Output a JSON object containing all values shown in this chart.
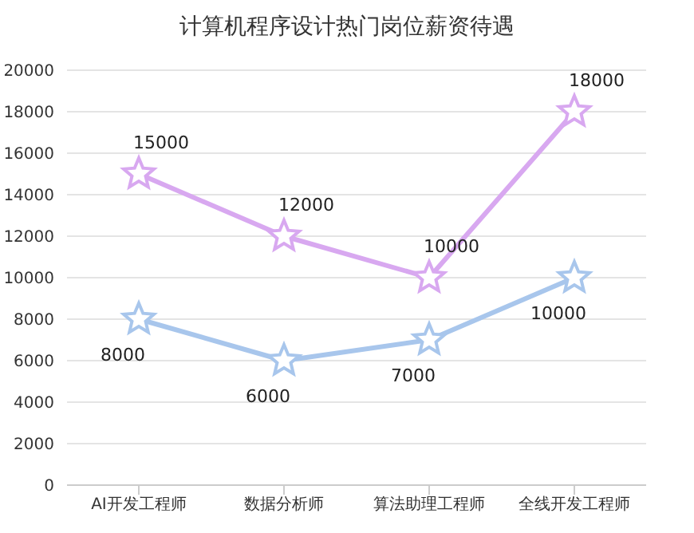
{
  "chart_data": {
    "type": "line",
    "title": "计算机程序设计热门岗位薪资待遇",
    "categories": [
      "AI开发工程师",
      "数据分析师",
      "算法助理工程师",
      "全线开发工程师"
    ],
    "series": [
      {
        "color": "#d8a8f0",
        "values": [
          15000,
          12000,
          10000,
          18000
        ]
      },
      {
        "color": "#a8c6ec",
        "values": [
          8000,
          6000,
          7000,
          10000
        ]
      }
    ],
    "ylim": [
      0,
      20000
    ],
    "yticks": [
      0,
      2000,
      4000,
      6000,
      8000,
      10000,
      12000,
      14000,
      16000,
      18000,
      20000
    ],
    "grid": "y",
    "marker": "star",
    "data_labels": true,
    "legend": false
  }
}
